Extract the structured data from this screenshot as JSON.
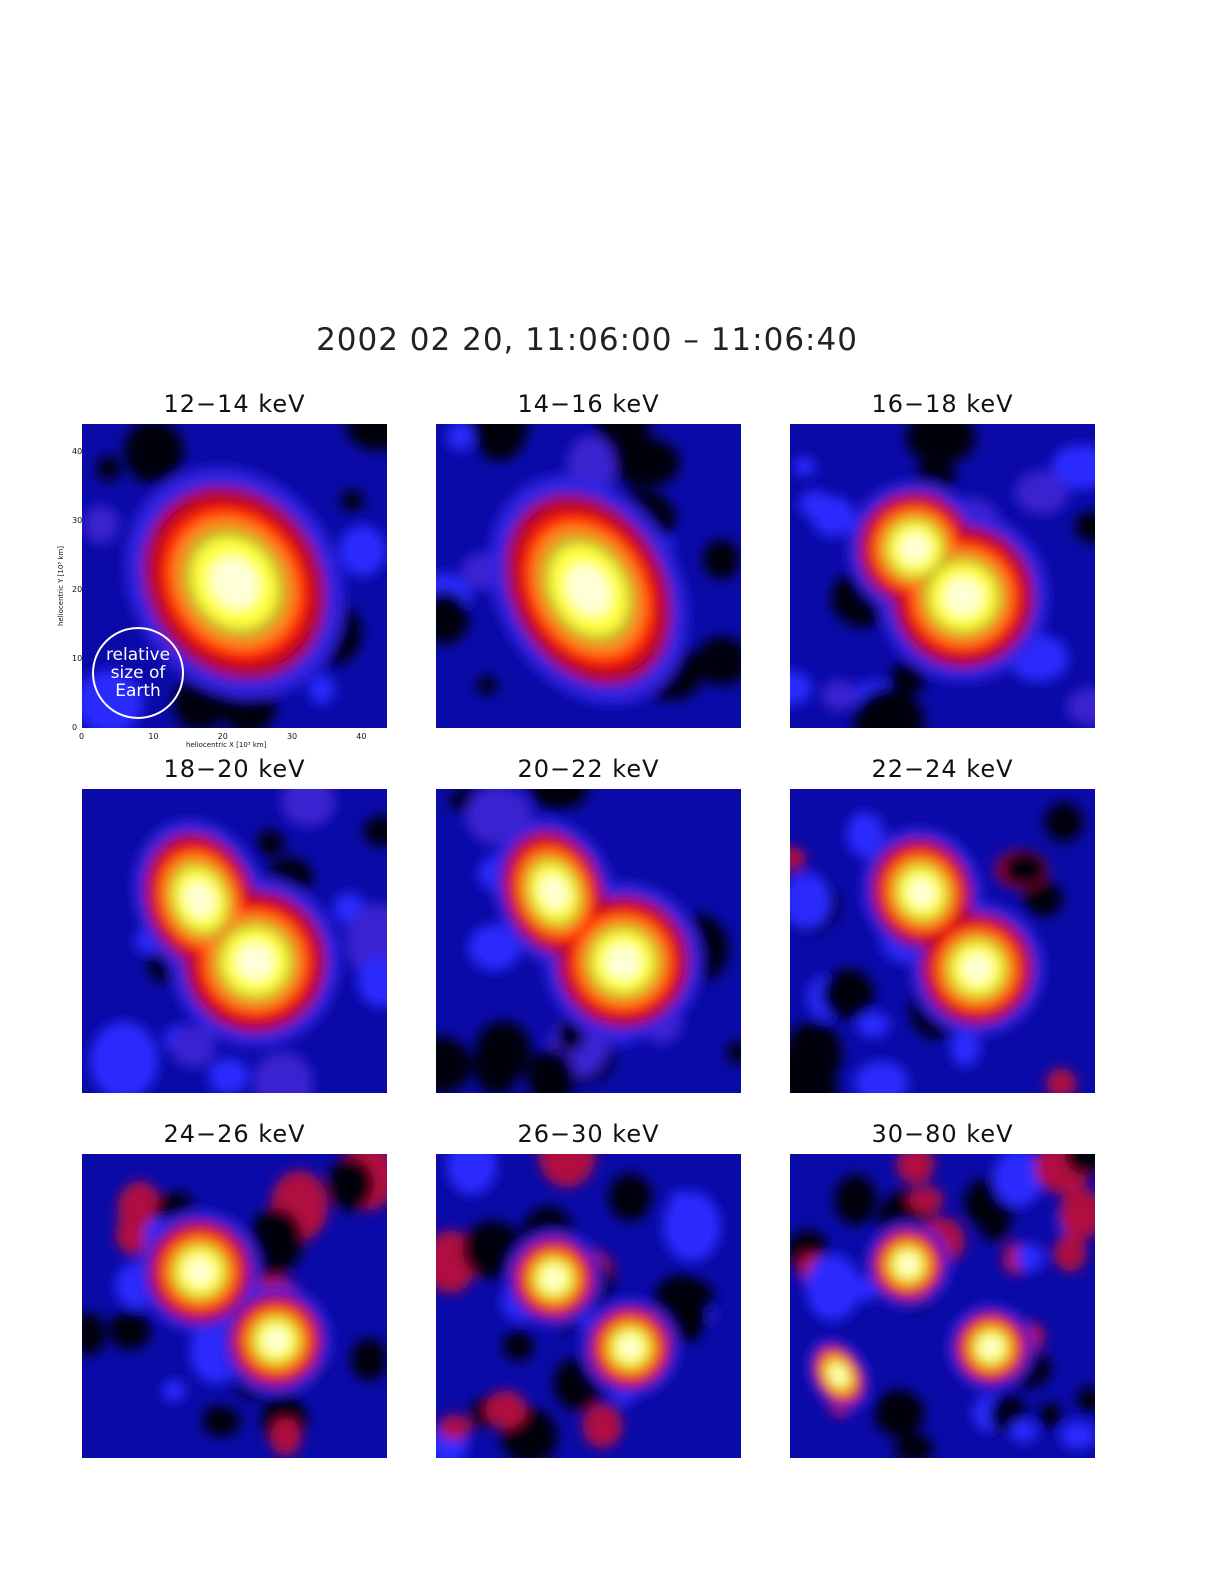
{
  "figure": {
    "title": "2002 02 20, 11:06:00 – 11:06:40"
  },
  "panels": [
    {
      "label": "12−14 keV",
      "sources": [
        {
          "x": 22,
          "y": 21,
          "rx": 8.5,
          "ry": 10,
          "i": 1.0,
          "rot": -35
        }
      ],
      "noise": 0.1
    },
    {
      "label": "14−16 keV",
      "sources": [
        {
          "x": 22,
          "y": 20,
          "rx": 7.5,
          "ry": 10,
          "i": 1.0,
          "rot": -30
        }
      ],
      "noise": 0.15
    },
    {
      "label": "16−18 keV",
      "sources": [
        {
          "x": 25,
          "y": 19,
          "rx": 7,
          "ry": 7,
          "i": 1.0,
          "rot": 0
        },
        {
          "x": 18,
          "y": 26,
          "rx": 6,
          "ry": 6,
          "i": 0.7,
          "rot": 0
        }
      ],
      "noise": 0.2
    },
    {
      "label": "18−20 keV",
      "sources": [
        {
          "x": 25,
          "y": 19,
          "rx": 7,
          "ry": 7,
          "i": 1.0,
          "rot": 0
        },
        {
          "x": 17,
          "y": 28,
          "rx": 5.5,
          "ry": 7,
          "i": 0.85,
          "rot": -20
        }
      ],
      "noise": 0.25
    },
    {
      "label": "20−22 keV",
      "sources": [
        {
          "x": 27,
          "y": 19,
          "rx": 6.5,
          "ry": 6.5,
          "i": 1.0,
          "rot": 0
        },
        {
          "x": 17,
          "y": 29,
          "rx": 5,
          "ry": 6.5,
          "i": 0.85,
          "rot": -20
        }
      ],
      "noise": 0.3
    },
    {
      "label": "22−24 keV",
      "sources": [
        {
          "x": 27,
          "y": 18,
          "rx": 5.5,
          "ry": 5.5,
          "i": 1.0,
          "rot": 0
        },
        {
          "x": 19,
          "y": 29,
          "rx": 5,
          "ry": 5.5,
          "i": 0.9,
          "rot": -20
        }
      ],
      "noise": 0.35
    },
    {
      "label": "24−26 keV",
      "sources": [
        {
          "x": 28,
          "y": 17,
          "rx": 4.5,
          "ry": 4.5,
          "i": 1.0,
          "rot": 0
        },
        {
          "x": 17,
          "y": 27,
          "rx": 5,
          "ry": 5,
          "i": 1.0,
          "rot": 0
        }
      ],
      "noise": 0.45
    },
    {
      "label": "26−30 keV",
      "sources": [
        {
          "x": 28,
          "y": 16,
          "rx": 4,
          "ry": 4,
          "i": 1.0,
          "rot": 0
        },
        {
          "x": 17,
          "y": 26,
          "rx": 4,
          "ry": 4,
          "i": 0.95,
          "rot": 0
        }
      ],
      "noise": 0.5
    },
    {
      "label": "30−80 keV",
      "sources": [
        {
          "x": 29,
          "y": 16,
          "rx": 3.5,
          "ry": 3.5,
          "i": 1.0,
          "rot": 0
        },
        {
          "x": 17,
          "y": 28,
          "rx": 3.5,
          "ry": 3.5,
          "i": 1.0,
          "rot": 0
        },
        {
          "x": 7,
          "y": 12,
          "rx": 2.5,
          "ry": 3.5,
          "i": 0.6,
          "rot": -30
        }
      ],
      "noise": 0.7
    }
  ],
  "axes": {
    "xlabel": "heliocentric X [10³ km]",
    "ylabel": "heliocentric Y [10³ km]",
    "xticks": [
      "0",
      "10",
      "20",
      "30",
      "40"
    ],
    "yticks": [
      "0",
      "10",
      "20",
      "30",
      "40"
    ]
  },
  "earth_label": [
    "relative",
    "size of",
    "Earth"
  ],
  "colors": {
    "background": "#ffffff",
    "scale_low": "#000000",
    "scale_mid": "#1010ff",
    "scale_red": "#ff1000",
    "scale_high": "#ffffc0"
  }
}
